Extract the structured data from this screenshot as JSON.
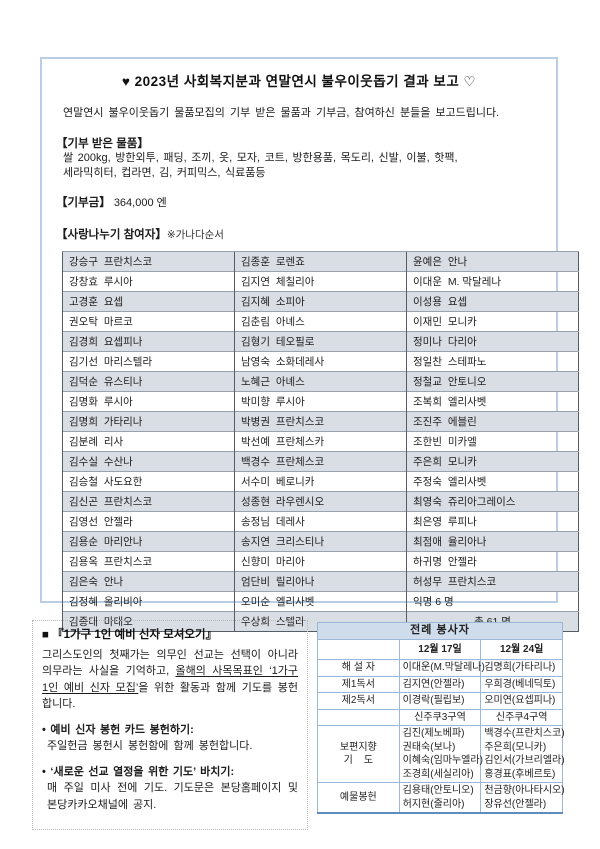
{
  "colors": {
    "box-border": "#b9cde5",
    "table-shade": "#d9dde4",
    "liturgy-outer": "#5f8cc0",
    "liturgy-border": "#9cb8d9",
    "liturgy-title-bg": "#cfdcec"
  },
  "report": {
    "title": "♥ 2023년 사회복지분과 연말연시 불우이웃돕기 결과 보고 ♡",
    "intro": "연말연시 불우이웃돕기 물품모집의 기부 받은 물품과 기부금, 참여하신 분들을 보고드립니다.",
    "goods": {
      "heading": "【기부 받은 물품】",
      "line1": "쌀 200kg, 방한외투, 패딩, 조끼, 옷, 모자, 코트, 방한용품, 목도리, 신발, 이불, 핫팩,",
      "line2": "세라믹히터, 컵라면, 김, 커피믹스, 식료품등"
    },
    "donation": {
      "heading": "【기부금】",
      "amount": "364,000 엔"
    },
    "participants": {
      "heading": "【사랑나누기 참여자】",
      "note": "※가나다순서",
      "total_label": "총 61 명",
      "rows": [
        [
          "강승구  프란치스코",
          "김종훈  로렌죠",
          "윤예은  안나"
        ],
        [
          "강창효  루시아",
          "김지연  체칠리아",
          "이대운  M. 막달레나"
        ],
        [
          "고경훈  요셉",
          "김지혜  소피아",
          "이성용  요셉"
        ],
        [
          "권오탁  마르코",
          "김춘림  아녜스",
          "이재민  모니카"
        ],
        [
          "김경희  요셉피나",
          "김형기  테오필로",
          "정미나  다리아"
        ],
        [
          "김기선  마리스텔라",
          "남영숙  소화데레사",
          "정일찬  스테파노"
        ],
        [
          "김덕순  유스티나",
          "노혜근  아녜스",
          "정철교  안토니오"
        ],
        [
          "김명화  루시아",
          "박미향  루시아",
          "조복희  엘리사벳"
        ],
        [
          "김명희  가타리나",
          "박병권  프란치스코",
          "조진주  에블린"
        ],
        [
          "김분례  리사",
          "박선예  프란체스카",
          "조한빈  미카엘"
        ],
        [
          "김수실  수산나",
          "백경수  프란체스코",
          "주은희  모니카"
        ],
        [
          "김승철  사도요한",
          "서수미  베로니카",
          "주정숙  엘리사벳"
        ],
        [
          "김신곤  프란치스코",
          "성종현  라우렌시오",
          "최영숙  쥬리아그레이스"
        ],
        [
          "김영선  안젤라",
          "송정님  데레사",
          "최은영  루피나"
        ],
        [
          "김용순  마리안나",
          "송지연  크리스티나",
          "최점애  율리아나"
        ],
        [
          "김용옥  프란치스코",
          "신향미  마리아",
          "하귀명  안젤라"
        ],
        [
          "김은숙  안나",
          "엄단비  릴리아나",
          "허성무  프란치스코"
        ],
        [
          "김정혜  올리비아",
          "오미순  엘리사벳",
          "익명 6 명"
        ],
        [
          "김종대  마태오",
          "우상희  스텔라",
          "총 61 명"
        ]
      ]
    }
  },
  "mission": {
    "title": "■ 『1가구 1인 예비 신자 모셔오기』",
    "para_1": "그리스도인의 첫째가는 의무인 선교는 선택이 아니라 의무라는 사실을 기억하고, ",
    "para_underline": "올해의 사목목표인 ‘1가구 1인 예비 신자 모집’",
    "para_2": "을 위한 활동과 함께 기도를 봉헌합니다.",
    "bullet1_title": "• 예비 신자 봉헌 카드 봉헌하기:",
    "bullet1_body": "주일헌금 봉헌시 봉헌함에 함께 봉헌합니다.",
    "bullet2_title": "• ‘새로운 선교 열정을 위한 기도’ 바치기:",
    "bullet2_body": "매 주일 미사 전에 기도. 기도문은 본당홈페이지 및 본당카카오채널에 공지."
  },
  "liturgy": {
    "title": "전례 봉사자",
    "col1": "12월 17일",
    "col2": "12월 24일",
    "rows": [
      {
        "label": "해 설 자",
        "d17": "이대운(M.막달레나)",
        "d24": "김명희(가타리나)"
      },
      {
        "label": "제1독서",
        "d17": "김지연(안젤라)",
        "d24": "우희경(베네딕토)"
      },
      {
        "label": "제2독서",
        "d17": "이경락(필립보)",
        "d24": "오미연(요셉피나)"
      },
      {
        "label": "",
        "d17": "신주쿠3구역",
        "d24": "신주쿠4구역"
      },
      {
        "label": "보편지향\n기    도",
        "d17": "김진(제노베파)\n권태숙(보나)\n이혜숙(임마누엘라)\n조경희(세실리아)",
        "d24": "백경수(프란치스코)\n주은희(모니카)\n김인서(가브리엘라)\n홍경표(후베르토)"
      },
      {
        "label": "예물봉헌",
        "d17": "김용태(안토니오)\n허지현(줄리아)",
        "d24": "천금향(아나타시오)\n장유선(안젤라)"
      }
    ]
  }
}
